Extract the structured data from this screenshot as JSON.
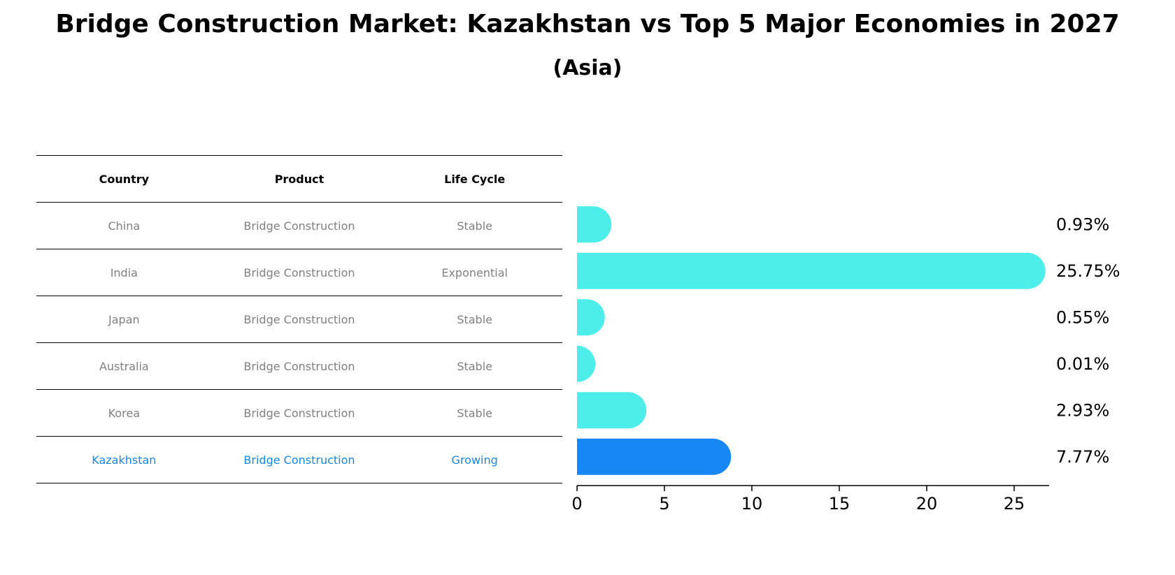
{
  "title": "Bridge Construction Market: Kazakhstan vs Top 5 Major Economies in 2027",
  "subtitle": "(Asia)",
  "table": {
    "headers": [
      "Country",
      "Product",
      "Life Cycle"
    ],
    "rows": [
      {
        "country": "China",
        "product": "Bridge Construction",
        "life_cycle": "Stable"
      },
      {
        "country": "India",
        "product": "Bridge Construction",
        "life_cycle": "Exponential"
      },
      {
        "country": "Japan",
        "product": "Bridge Construction",
        "life_cycle": "Stable"
      },
      {
        "country": "Australia",
        "product": "Bridge Construction",
        "life_cycle": "Stable"
      },
      {
        "country": "Korea",
        "product": "Bridge Construction",
        "life_cycle": "Stable"
      },
      {
        "country": "Kazakhstan",
        "product": "Bridge Construction",
        "life_cycle": "Growing"
      }
    ]
  },
  "colors": {
    "bar": "#4dedea",
    "highlight_bar": "#1787f5",
    "highlight_text": "#1787e0",
    "muted_text": "#808080"
  },
  "chart_data": {
    "type": "bar",
    "orientation": "horizontal",
    "categories": [
      "China",
      "India",
      "Japan",
      "Australia",
      "Korea",
      "Kazakhstan"
    ],
    "values": [
      0.93,
      25.75,
      0.55,
      0.01,
      2.93,
      7.77
    ],
    "value_labels": [
      "0.93%",
      "25.75%",
      "0.55%",
      "0.01%",
      "2.93%",
      "7.77%"
    ],
    "highlight": "Kazakhstan",
    "xlim": [
      0,
      27
    ],
    "xticks": [
      0,
      5,
      10,
      15,
      20,
      25
    ],
    "title": "Bridge Construction Market: Kazakhstan vs Top 5 Major Economies in 2027",
    "subtitle": "(Asia)",
    "xlabel": "",
    "ylabel": ""
  }
}
